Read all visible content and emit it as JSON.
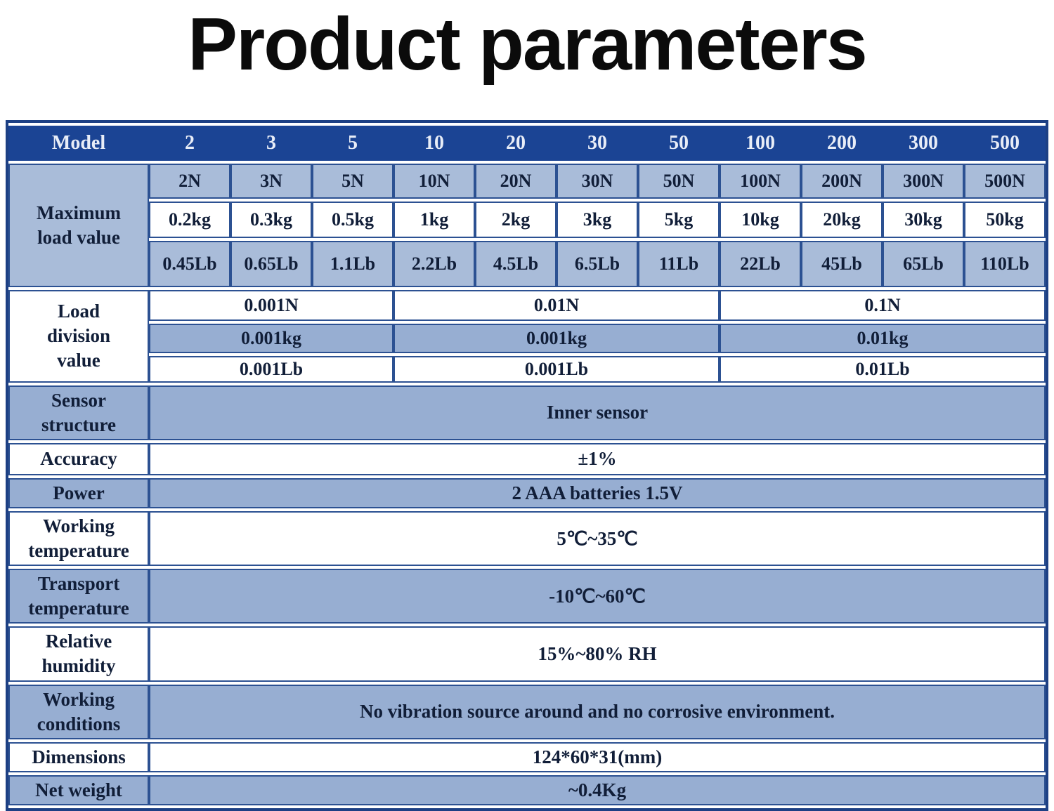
{
  "title": "Product parameters",
  "colors": {
    "header_bg": "#1b4494",
    "table_border": "#2c5192",
    "row_blue_light": "#a9bcd9",
    "row_blue": "#97aed2",
    "header_text": "#e8edf7",
    "body_text": "#111e38"
  },
  "table": {
    "header": {
      "label": "Model",
      "models": [
        "2",
        "3",
        "5",
        "10",
        "20",
        "30",
        "50",
        "100",
        "200",
        "300",
        "500"
      ]
    },
    "max_load": {
      "label": "Maximum load value",
      "newton": [
        "2N",
        "3N",
        "5N",
        "10N",
        "20N",
        "30N",
        "50N",
        "100N",
        "200N",
        "300N",
        "500N"
      ],
      "kg": [
        "0.2kg",
        "0.3kg",
        "0.5kg",
        "1kg",
        "2kg",
        "3kg",
        "5kg",
        "10kg",
        "20kg",
        "30kg",
        "50kg"
      ],
      "lb": [
        "0.45Lb",
        "0.65Lb",
        "1.1Lb",
        "2.2Lb",
        "4.5Lb",
        "6.5Lb",
        "11Lb",
        "22Lb",
        "45Lb",
        "65Lb",
        "110Lb"
      ]
    },
    "load_division": {
      "label": "Load division value",
      "newton": [
        "0.001N",
        "0.01N",
        "0.1N"
      ],
      "kg": [
        "0.001kg",
        "0.001kg",
        "0.01kg"
      ],
      "lb": [
        "0.001Lb",
        "0.001Lb",
        "0.01Lb"
      ]
    },
    "specs": [
      {
        "label": "Sensor structure",
        "value": "Inner sensor"
      },
      {
        "label": "Accuracy",
        "value": "±1%"
      },
      {
        "label": "Power",
        "value": "2 AAA batteries 1.5V"
      },
      {
        "label": "Working temperature",
        "value": "5℃~35℃"
      },
      {
        "label": "Transport temperature",
        "value": "-10℃~60℃"
      },
      {
        "label": "Relative humidity",
        "value": "15%~80% RH"
      },
      {
        "label": "Working conditions",
        "value": "No vibration source around and no corrosive environment."
      },
      {
        "label": "Dimensions",
        "value": "124*60*31(mm)"
      },
      {
        "label": "Net weight",
        "value": "~0.4Kg"
      }
    ]
  }
}
